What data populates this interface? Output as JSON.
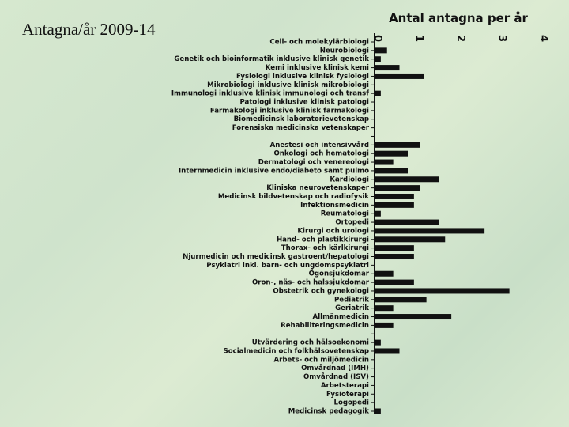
{
  "slide_title": "Antagna/år 2009-14",
  "chart_data": {
    "type": "bar",
    "orientation": "horizontal",
    "title": "Antal antagna per år",
    "color": "#111111",
    "grid": false,
    "xlim": [
      0,
      4
    ],
    "xticks": [
      0,
      1,
      2,
      3,
      4
    ],
    "categories": [
      "Cell- och molekylärbiologi",
      "Neurobiologi",
      "Genetik och bioinformatik inklusive klinisk genetik",
      "Kemi inklusive klinisk kemi",
      "Fysiologi inklusive klinisk fysiologi",
      "Mikrobiologi inklusive klinisk mikrobiologi",
      "Immunologi inklusive klinisk immunologi och transf",
      "Patologi inklusive klinisk patologi",
      "Farmakologi inklusive klinisk farmakologi",
      "Biomedicinsk laboratorievetenskap",
      "Forensiska medicinska vetenskaper",
      null,
      "Anestesi och intensivvård",
      "Onkologi och hematologi",
      "Dermatologi och venereologi",
      "Internmedicin inklusive endo/diabeto samt pulmo",
      "Kardiologi",
      "Kliniska neurovetenskaper",
      "Medicinsk bildvetenskap och radiofysik",
      "Infektionsmedicin",
      "Reumatologi",
      "Ortopedi",
      "Kirurgi och urologi",
      "Hand- och plastikkirurgi",
      "Thorax- och kärlkirurgi",
      "Njurmedicin och medicinsk gastroent/hepatologi",
      "Psykiatri inkl. barn- och ungdomspsykiatri",
      "Ögonsjukdomar",
      "Öron-, näs- och halssjukdomar",
      "Obstetrik och gynekologi",
      "Pediatrik",
      "Geriatrik",
      "Allmänmedicin",
      "Rehabiliteringsmedicin",
      null,
      "Utvärdering och hälsoekonomi",
      "Socialmedicin och folkhälsovetenskap",
      "Arbets- och miljömedicin",
      "Omvårdnad (IMH)",
      "Omvårdnad (ISV)",
      "Arbetsterapi",
      "Fysioterapi",
      "Logopedi",
      "Medicinsk pedagogik"
    ],
    "values": [
      0,
      0.3,
      0.15,
      0.6,
      1.2,
      0,
      0.15,
      0,
      0,
      0,
      0,
      null,
      1.1,
      0.8,
      0.45,
      0.8,
      1.55,
      1.1,
      0.95,
      0.95,
      0.15,
      1.55,
      2.65,
      1.7,
      0.95,
      0.95,
      0,
      0.45,
      0.95,
      3.25,
      1.25,
      0.45,
      1.85,
      0.45,
      null,
      0.15,
      0.6,
      0,
      0,
      0,
      0,
      0,
      0,
      0.15
    ]
  }
}
